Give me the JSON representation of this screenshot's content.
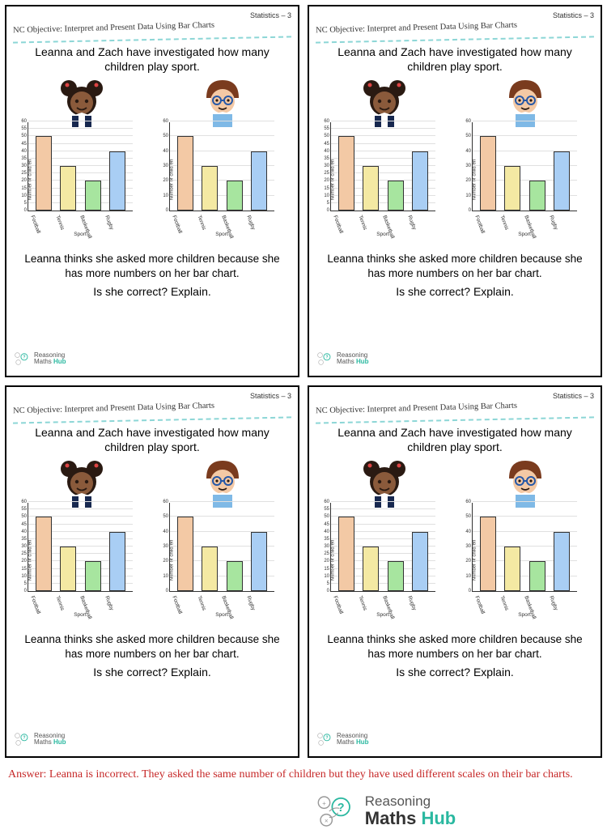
{
  "header_right": "Statistics – 3",
  "objective": "NC Objective: Interpret and Present Data Using Bar Charts",
  "intro_line1": "Leanna and Zach have investigated how many",
  "intro_line2": "children play sport.",
  "chart_left": {
    "type": "bar",
    "ylabel": "Number of children",
    "xlabel": "Sport",
    "ylim": [
      0,
      60
    ],
    "ytick_step": 5,
    "categories": [
      "Football",
      "Tennis",
      "Basketball",
      "Rugby"
    ],
    "values": [
      50,
      30,
      20,
      40
    ],
    "bar_colors": [
      "#f3c9a5",
      "#f4e9a3",
      "#a7e59f",
      "#a9cef4"
    ],
    "bar_border": "#333333",
    "grid_color": "#e0e0e0",
    "axis_color": "#333333",
    "label_fontsize": 6.5
  },
  "chart_right": {
    "type": "bar",
    "ylabel": "Number of children",
    "xlabel": "Sport",
    "ylim": [
      0,
      60
    ],
    "ytick_step": 10,
    "categories": [
      "Football",
      "Tennis",
      "Basketball",
      "Rugby"
    ],
    "values": [
      50,
      30,
      20,
      40
    ],
    "bar_colors": [
      "#f3c9a5",
      "#f4e9a3",
      "#a7e59f",
      "#a9cef4"
    ],
    "bar_border": "#333333",
    "grid_color": "#e0e0e0",
    "axis_color": "#333333",
    "label_fontsize": 6.5
  },
  "statement_line1": "Leanna thinks she asked more children because she",
  "statement_line2": "has more numbers on her bar chart.",
  "question": "Is she correct? Explain.",
  "logo": {
    "line1": "Reasoning",
    "line2_a": "Maths",
    "line2_b": "Hub",
    "accent": "#2ab8a0",
    "text_color": "#555555"
  },
  "answer": "Answer: Leanna is incorrect. They asked the same number of children but they have used different scales on their bar charts.",
  "colors": {
    "dash": "#8cd6d6",
    "answer": "#c62828"
  }
}
